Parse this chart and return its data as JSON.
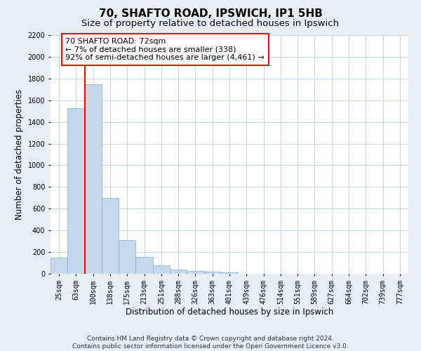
{
  "title_line1": "70, SHAFTO ROAD, IPSWICH, IP1 5HB",
  "title_line2": "Size of property relative to detached houses in Ipswich",
  "xlabel": "Distribution of detached houses by size in Ipswich",
  "ylabel": "Number of detached properties",
  "categories": [
    "25sqm",
    "63sqm",
    "100sqm",
    "138sqm",
    "175sqm",
    "213sqm",
    "251sqm",
    "288sqm",
    "326sqm",
    "363sqm",
    "401sqm",
    "439sqm",
    "476sqm",
    "514sqm",
    "551sqm",
    "589sqm",
    "627sqm",
    "664sqm",
    "702sqm",
    "739sqm",
    "777sqm"
  ],
  "values": [
    150,
    1530,
    1750,
    700,
    310,
    155,
    80,
    40,
    25,
    20,
    15,
    0,
    0,
    0,
    0,
    0,
    0,
    0,
    0,
    0,
    0
  ],
  "bar_color": "#c5d8ed",
  "bar_edge_color": "#7aafd4",
  "grid_color": "#c8d4e0",
  "annotation_text": "70 SHAFTO ROAD: 72sqm\n← 7% of detached houses are smaller (338)\n92% of semi-detached houses are larger (4,461) →",
  "annotation_box_color": "white",
  "annotation_box_edge_color": "red",
  "vline_color": "red",
  "ylim": [
    0,
    2200
  ],
  "yticks": [
    0,
    200,
    400,
    600,
    800,
    1000,
    1200,
    1400,
    1600,
    1800,
    2000,
    2200
  ],
  "footnote_line1": "Contains HM Land Registry data © Crown copyright and database right 2024.",
  "footnote_line2": "Contains public sector information licensed under the Open Government Licence v3.0.",
  "bg_color": "#e8eef4",
  "plot_bg_color": "white",
  "title_fontsize": 11,
  "subtitle_fontsize": 9.5,
  "tick_fontsize": 7,
  "label_fontsize": 8.5,
  "annotation_fontsize": 8,
  "footnote_fontsize": 6.5
}
